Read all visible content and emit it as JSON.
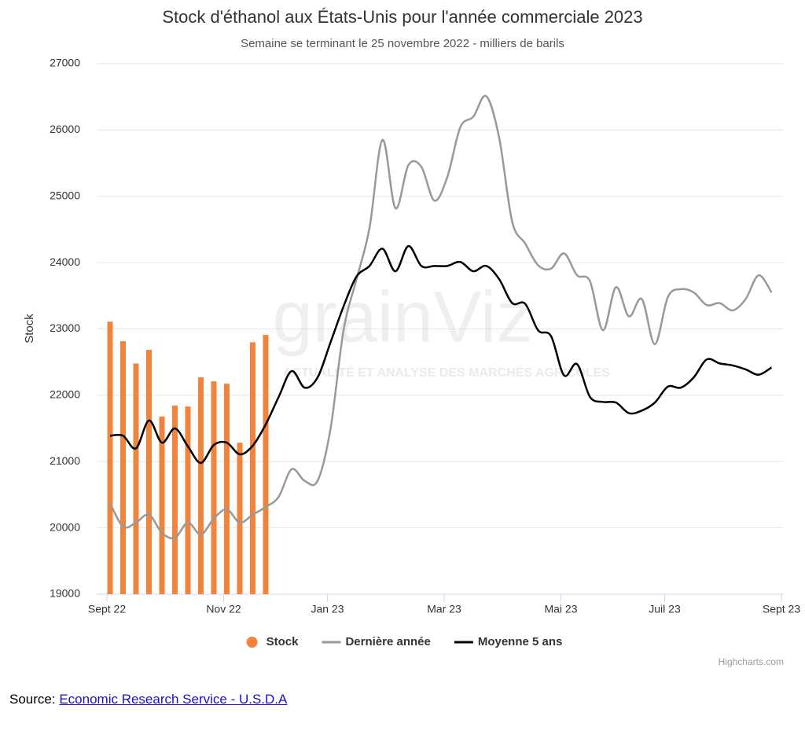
{
  "chart_data": {
    "type": "bar-line",
    "title": "Stock d'éthanol aux États-Unis pour l'année commerciale 2023",
    "subtitle": "Semaine se terminant le 25 novembre 2022 - milliers de barils",
    "y_label": "Stock",
    "categories": [
      "Sept 22",
      null,
      null,
      null,
      null,
      null,
      null,
      null,
      null,
      "Nov 22",
      null,
      null,
      null,
      null,
      null,
      null,
      null,
      "Jan 23",
      null,
      null,
      null,
      null,
      null,
      null,
      null,
      null,
      "Mar 23",
      null,
      null,
      null,
      null,
      null,
      null,
      null,
      null,
      "Mai 23",
      null,
      null,
      null,
      null,
      null,
      null,
      null,
      "Juil 23",
      null,
      null,
      null,
      null,
      null,
      null,
      null,
      null,
      "Sept 23"
    ],
    "series": [
      {
        "name": "Stock",
        "kind": "bar",
        "color": "#f0843c",
        "values": [
          23110,
          22815,
          22480,
          22685,
          21680,
          21845,
          21830,
          22270,
          22210,
          22175,
          21285,
          22800,
          22910,
          null,
          null,
          null,
          null,
          null,
          null,
          null,
          null,
          null,
          null,
          null,
          null,
          null,
          null,
          null,
          null,
          null,
          null,
          null,
          null,
          null,
          null,
          null,
          null,
          null,
          null,
          null,
          null,
          null,
          null,
          null,
          null,
          null,
          null,
          null,
          null,
          null,
          null,
          null,
          null
        ]
      },
      {
        "name": "Dernière année",
        "kind": "line",
        "color": "#999999",
        "values": [
          20375,
          20020,
          20080,
          20200,
          19925,
          19850,
          20080,
          19900,
          20140,
          20280,
          20080,
          20200,
          20315,
          20470,
          20885,
          20710,
          20710,
          21500,
          22980,
          23750,
          24520,
          25850,
          24820,
          25470,
          25445,
          24935,
          25290,
          26040,
          26200,
          26510,
          25880,
          24620,
          24290,
          23960,
          23910,
          24140,
          23810,
          23720,
          22980,
          23630,
          23190,
          23450,
          22770,
          23480,
          23600,
          23550,
          23360,
          23390,
          23280,
          23450,
          23810,
          23550,
          null
        ]
      },
      {
        "name": "Moyenne 5 ans",
        "kind": "line",
        "color": "#000000",
        "values": [
          21390,
          21390,
          21200,
          21620,
          21285,
          21500,
          21230,
          20980,
          21250,
          21285,
          21110,
          21240,
          21560,
          21975,
          22365,
          22115,
          22270,
          22800,
          23340,
          23790,
          23950,
          24210,
          23870,
          24250,
          23950,
          23950,
          23950,
          24010,
          23870,
          23950,
          23750,
          23390,
          23380,
          22980,
          22890,
          22300,
          22470,
          21975,
          21900,
          21890,
          21730,
          21770,
          21890,
          22130,
          22115,
          22270,
          22540,
          22480,
          22450,
          22390,
          22310,
          22420,
          null
        ]
      }
    ],
    "ylim": [
      19000,
      27000
    ],
    "yticks": [
      19000,
      20000,
      21000,
      22000,
      23000,
      24000,
      25000,
      26000,
      27000
    ],
    "grid": true,
    "legend": "bottom",
    "watermark": {
      "brand": "grainViz",
      "tagline": "ACTUALITÉ ET ANALYSE DES MARCHÉS AGRICOLES"
    },
    "credits": "Highcharts.com"
  },
  "source": {
    "label": "Source:",
    "link": "Economic Research Service - U.S.D.A"
  }
}
